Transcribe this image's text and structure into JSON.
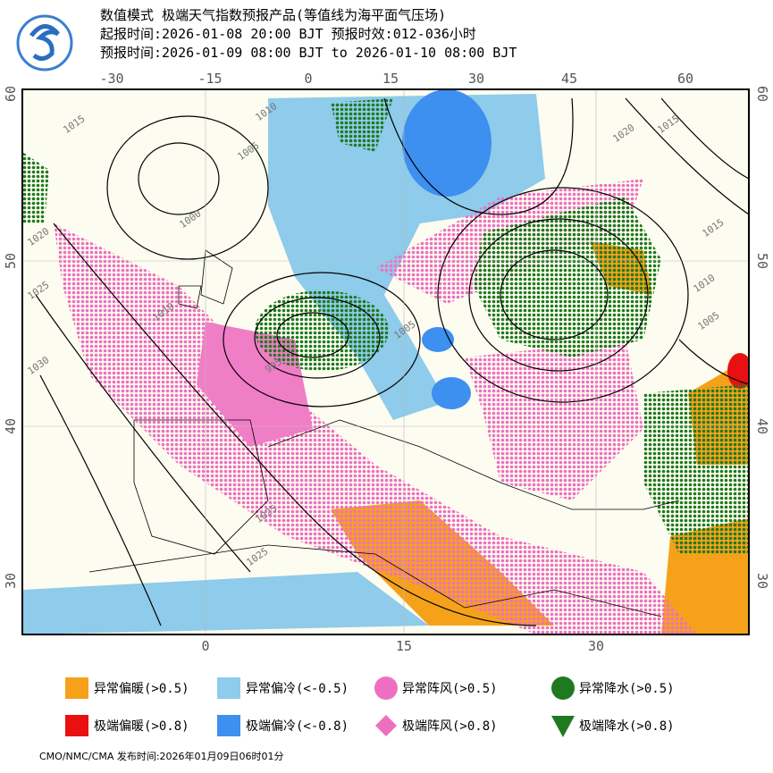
{
  "header": {
    "title": "数值模式 极端天气指数预报产品(等值线为海平面气压场)",
    "issue": "起报时间:2026-01-08 20:00 BJT 预报时效:012-036小时",
    "valid": "预报时间:2026-01-09 08:00 BJT to 2026-01-10 08:00 BJT"
  },
  "map": {
    "top_lon_labels": [
      "-30",
      "-15",
      "0",
      "15",
      "30",
      "45",
      "60"
    ],
    "bottom_lon_labels": [
      "0",
      "15",
      "30"
    ],
    "left_lat_labels": [
      "60",
      "50",
      "40",
      "30"
    ],
    "right_lat_labels": [
      "60",
      "50",
      "40",
      "30"
    ],
    "isobar_labels": [
      "1015",
      "1010",
      "1005",
      "1000",
      "1020",
      "1025",
      "1030",
      "1010",
      "995",
      "1005",
      "1020",
      "1015",
      "1025",
      "1025",
      "1015",
      "1010",
      "1005"
    ]
  },
  "legend": [
    "异常偏暖(>0.5)",
    "异常偏冷(<-0.5)",
    "异常阵风(>0.5)",
    "异常降水(>0.5)",
    "极端偏暖(>0.8)",
    "极端偏冷(<-0.8)",
    "极端阵风(>0.8)",
    "极端降水(>0.8)"
  ],
  "footer": "CMO/NMC/CMA 发布时间:2026年01月09日06时01分"
}
